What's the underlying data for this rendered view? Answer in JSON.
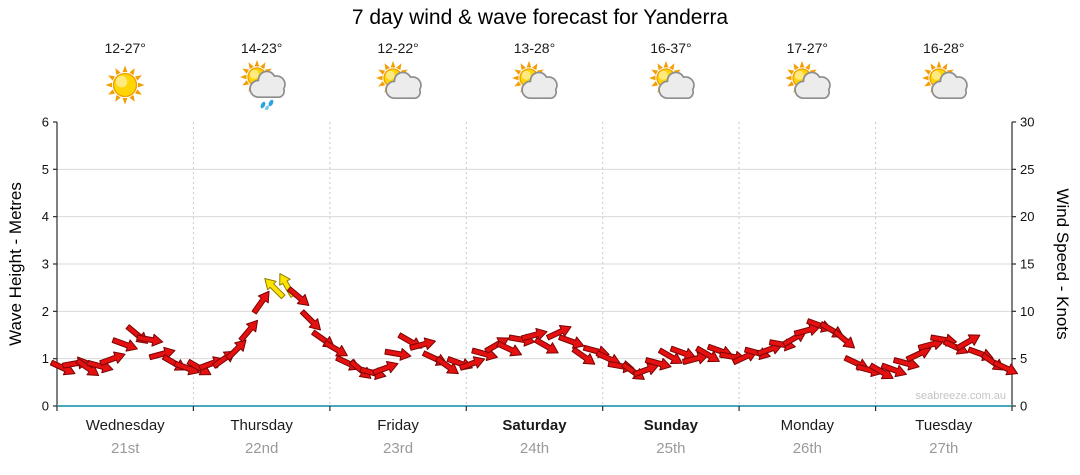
{
  "chart_data": {
    "type": "scatter",
    "title": "7 day wind & wave forecast for Yanderra",
    "left_axis": {
      "label": "Wave Height - Metres",
      "min": 0,
      "max": 6,
      "step": 1
    },
    "right_axis": {
      "label": "Wind Speed - Knots",
      "min": 0,
      "max": 30,
      "step": 5
    },
    "grid": true,
    "days": [
      {
        "name": "Wednesday",
        "date": "21st",
        "temp": "12-27°",
        "icon": "sunny",
        "weekend": false
      },
      {
        "name": "Thursday",
        "date": "22nd",
        "temp": "14-23°",
        "icon": "rain-shower",
        "weekend": false
      },
      {
        "name": "Friday",
        "date": "23rd",
        "temp": "12-22°",
        "icon": "partly-cloudy",
        "weekend": false
      },
      {
        "name": "Saturday",
        "date": "24th",
        "temp": "13-28°",
        "icon": "partly-cloudy",
        "weekend": true
      },
      {
        "name": "Sunday",
        "date": "25th",
        "temp": "16-37°",
        "icon": "partly-cloudy",
        "weekend": true
      },
      {
        "name": "Monday",
        "date": "26th",
        "temp": "17-27°",
        "icon": "partly-cloudy",
        "weekend": false
      },
      {
        "name": "Tuesday",
        "date": "27th",
        "temp": "16-28°",
        "icon": "partly-cloudy",
        "weekend": false
      }
    ],
    "wind": {
      "units": "knots",
      "speeds": [
        4,
        4.5,
        4,
        4.2,
        5,
        6.5,
        7.5,
        7,
        5.5,
        4.5,
        4,
        4,
        4.5,
        5,
        6,
        8,
        11,
        12.5,
        12.8,
        11.5,
        9,
        7,
        6,
        4.5,
        3.8,
        3.5,
        4,
        5.5,
        6.8,
        6.5,
        5,
        4.2,
        4.5,
        4.5,
        5.5,
        6.5,
        6,
        7,
        7.5,
        6.3,
        7.8,
        6.8,
        5.2,
        5.8,
        5,
        4.2,
        3.6,
        3.8,
        4.5,
        5.2,
        5.6,
        5,
        5.4,
        5.8,
        5.2,
        5.2,
        5.6,
        6,
        6.5,
        7.2,
        8,
        8.5,
        8,
        7,
        4.5,
        3.8,
        3.6,
        3.8,
        4.5,
        5.5,
        6.5,
        7,
        6.2,
        6.8,
        5.5,
        4.6,
        4
      ],
      "directions_deg": [
        25,
        -10,
        35,
        15,
        -20,
        20,
        40,
        10,
        -15,
        30,
        20,
        30,
        -20,
        -35,
        -45,
        -50,
        -55,
        -135,
        -120,
        40,
        45,
        35,
        30,
        25,
        40,
        15,
        -20,
        10,
        30,
        -15,
        25,
        35,
        20,
        -20,
        15,
        -30,
        25,
        10,
        -15,
        30,
        -25,
        20,
        35,
        15,
        25,
        10,
        35,
        -20,
        15,
        30,
        20,
        -15,
        30,
        20,
        10,
        -25,
        15,
        -20,
        10,
        -30,
        -15,
        20,
        30,
        40,
        25,
        15,
        30,
        20,
        15,
        -25,
        -15,
        10,
        25,
        -30,
        20,
        35,
        25
      ],
      "yellow_indices": [
        17,
        18
      ]
    },
    "watermark": "seabreeze.com.au",
    "colors": {
      "arrow": "#e51010",
      "arrow_stroke": "#7a0404",
      "arrow_strong": "#ffe300",
      "arrow_strong_stroke": "#8f7e00",
      "grid": "#d9d9d9",
      "day_separator": "#c9c9c9",
      "axis": "#2b2b2b",
      "baseline": "#4aa8bc"
    }
  }
}
